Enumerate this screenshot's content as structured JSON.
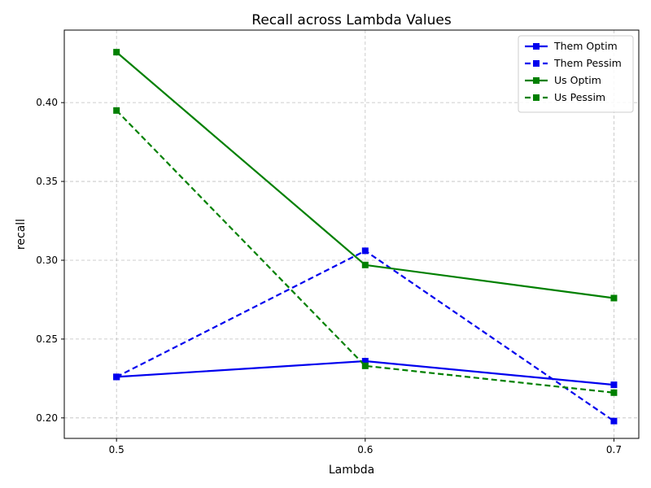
{
  "chart_data": {
    "type": "line",
    "title": "Recall across Lambda Values",
    "xlabel": "Lambda",
    "ylabel": "recall",
    "x": [
      0.5,
      0.6,
      0.7
    ],
    "x_tick_labels": [
      "0.5",
      "0.6",
      "0.7"
    ],
    "y_ticks": [
      0.2,
      0.25,
      0.3,
      0.35,
      0.4
    ],
    "y_tick_labels": [
      "0.20",
      "0.25",
      "0.30",
      "0.35",
      "0.40"
    ],
    "xlim": [
      0.479,
      0.71
    ],
    "ylim": [
      0.187,
      0.446
    ],
    "grid": true,
    "legend_position": "upper right",
    "series": [
      {
        "name": "Them Optim",
        "values": [
          0.226,
          0.236,
          0.221
        ],
        "color": "#0000ee",
        "linestyle": "solid",
        "marker": "square"
      },
      {
        "name": "Them Pessim",
        "values": [
          0.226,
          0.306,
          0.198
        ],
        "color": "#0000ee",
        "linestyle": "dashed",
        "marker": "square"
      },
      {
        "name": "Us Optim",
        "values": [
          0.432,
          0.297,
          0.276
        ],
        "color": "#008000",
        "linestyle": "solid",
        "marker": "square"
      },
      {
        "name": "Us Pessim",
        "values": [
          0.395,
          0.233,
          0.216
        ],
        "color": "#008000",
        "linestyle": "dashed",
        "marker": "square"
      }
    ]
  }
}
